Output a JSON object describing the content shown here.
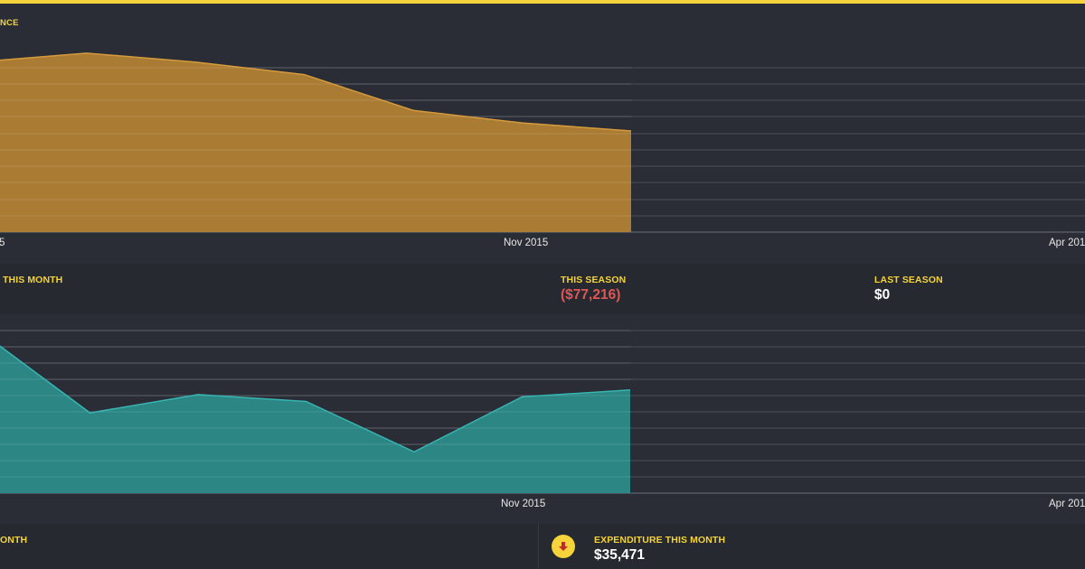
{
  "colors": {
    "accent": "#f5d33a",
    "label": "#f5d33a",
    "balance_fill": "#b07f34",
    "balance_line": "#d69b3c",
    "flow_fill": "#2b8b89",
    "flow_line": "#38b4b2",
    "grid": "#4a4f59",
    "negative": "#e05656",
    "arrow": "#c62828"
  },
  "balance_section": {
    "title_fragment": "NCE",
    "x_ticks": [
      "5",
      "Nov 2015",
      "Apr 201"
    ]
  },
  "season_stats": {
    "this_month": {
      "label": "THIS MONTH",
      "value": ""
    },
    "this_season": {
      "label": "THIS SEASON",
      "value": "($77,216)"
    },
    "last_season": {
      "label": "LAST SEASON",
      "value": "$0"
    }
  },
  "flow_section": {
    "x_ticks": [
      "Nov 2015",
      "Apr 201"
    ]
  },
  "bottom_stats": {
    "left_label": "ONTH",
    "expenditure": {
      "icon": "down-arrow-icon",
      "label": "EXPENDITURE THIS MONTH",
      "value": "$35,471"
    }
  },
  "chart_data": [
    {
      "type": "area",
      "title": "",
      "x": [
        0,
        1,
        2,
        3,
        4,
        5,
        6
      ],
      "series": [
        {
          "values": [
            90,
            100,
            90,
            76,
            36,
            22,
            13
          ]
        }
      ],
      "ylim": [
        -100,
        120
      ],
      "xlabel": "",
      "ylabel": "",
      "grid": true
    },
    {
      "type": "area",
      "title": "",
      "x": [
        0,
        1,
        2,
        3,
        4,
        5,
        6
      ],
      "series": [
        {
          "values": [
            70,
            35,
            43,
            40,
            18,
            42,
            45
          ]
        }
      ],
      "ylim": [
        0,
        78
      ],
      "xlabel": "",
      "ylabel": "",
      "grid": true
    }
  ]
}
